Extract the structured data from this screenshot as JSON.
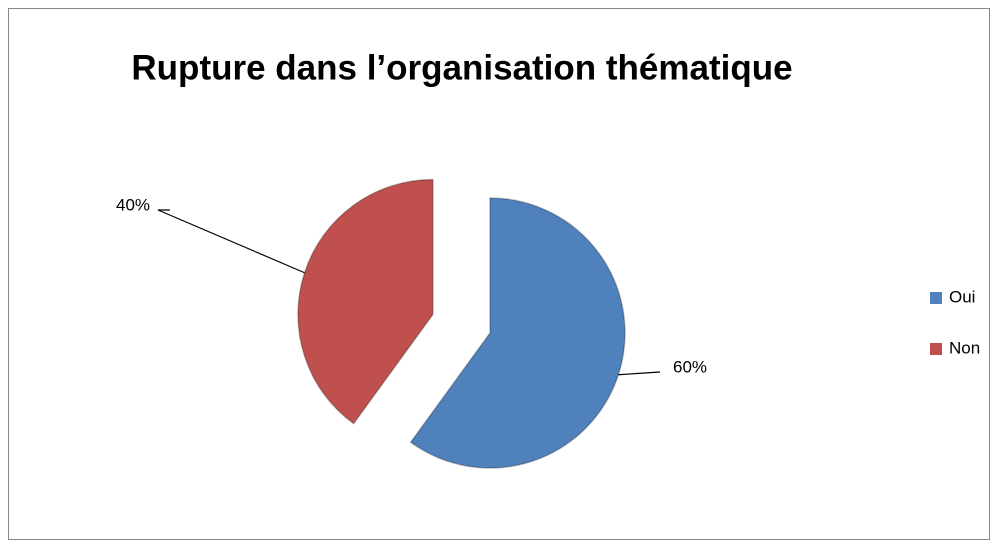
{
  "chart_data": {
    "type": "pie",
    "title": "Rupture dans l’organisation thématique",
    "categories": [
      "Oui",
      "Non"
    ],
    "values": [
      60,
      40
    ],
    "value_labels": [
      "60%",
      "40%"
    ],
    "colors": [
      "#4f81bd",
      "#c0504d"
    ],
    "legend": "right"
  }
}
